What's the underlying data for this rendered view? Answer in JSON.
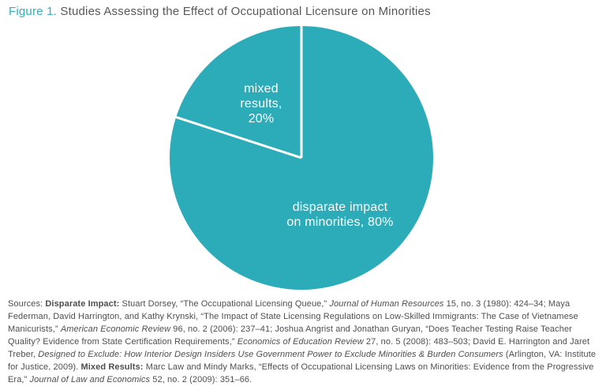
{
  "figure": {
    "title_prefix": "Figure 1.",
    "title_text": "Studies Assessing the Effect of Occupational Licensure on Minorities"
  },
  "chart_data": {
    "type": "pie",
    "title": "Studies Assessing the Effect of Occupational Licensure on Minorities",
    "start_angle_deg": 90,
    "direction": "clockwise",
    "slice_color": "#2cabb8",
    "divider_color": "#ffffff",
    "label_color": "#ffffff",
    "legend_position": "none",
    "slices": [
      {
        "label": "disparate impact on minorities",
        "value": 80,
        "unit": "%",
        "display": "disparate impact\non minorities, 80%"
      },
      {
        "label": "mixed results",
        "value": 20,
        "unit": "%",
        "display": "mixed\nresults,\n20%"
      }
    ]
  },
  "sources": {
    "segments": [
      {
        "style": "normal",
        "text": "Sources: "
      },
      {
        "style": "bold",
        "text": "Disparate Impact: "
      },
      {
        "style": "normal",
        "text": "Stuart Dorsey, “The Occupational Licensing Queue,” "
      },
      {
        "style": "italic",
        "text": "Journal of Human Resources"
      },
      {
        "style": "normal",
        "text": " 15, no. 3 (1980): 424–34; Maya Federman, David Harrington, and Kathy Krynski, “The Impact of State Licensing Regulations on Low-Skilled Immigrants: The Case of Vietnamese Manicurists,” "
      },
      {
        "style": "italic",
        "text": "American Economic Review"
      },
      {
        "style": "normal",
        "text": " 96, no. 2 (2006): 237–41; Joshua Angrist and Jonathan Guryan, “Does Teacher Testing Raise Teacher Quality? Evidence from State Certification Requirements,” "
      },
      {
        "style": "italic",
        "text": "Economics of Education Review"
      },
      {
        "style": "normal",
        "text": " 27, no. 5 (2008): 483–503; David E. Harrington and Jaret Treber, "
      },
      {
        "style": "italic",
        "text": "Designed to Exclude: How Interior Design Insiders Use Government Power to Exclude Minorities & Burden Consumers"
      },
      {
        "style": "normal",
        "text": " (Arlington, VA: Institute for Justice, 2009). "
      },
      {
        "style": "bold",
        "text": "Mixed Results: "
      },
      {
        "style": "normal",
        "text": "Marc Law and Mindy Marks, “Effects of Occupational Licensing Laws on Minorities: Evidence from the Progressive Era,” "
      },
      {
        "style": "italic",
        "text": "Journal of Law and Economics"
      },
      {
        "style": "normal",
        "text": " 52, no. 2 (2009): 351–66."
      }
    ]
  }
}
